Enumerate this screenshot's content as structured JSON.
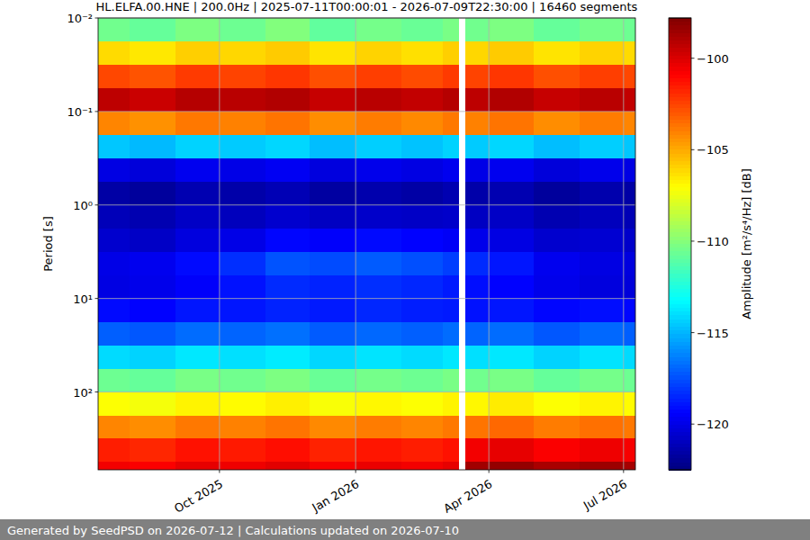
{
  "chart_data": {
    "type": "heatmap",
    "title": "HL.ELFA.00.HNE | 200.0Hz | 2025-07-11T00:00:01 - 2026-07-09T22:30:00 | 16460 segments",
    "footer": "Generated by SeedPSD on 2026-07-12 | Calculations updated on 2026-07-10",
    "y_label": "Period [s]",
    "x_bins": [
      "2025-07-11",
      "2025-08-01",
      "2025-09-01",
      "2025-10-01",
      "2025-11-01",
      "2025-12-01",
      "2026-01-01",
      "2026-02-01",
      "2026-03-01",
      "2026-03-12",
      "2026-03-16",
      "2026-04-01",
      "2026-05-01",
      "2026-06-01",
      "2026-07-01",
      "2026-07-09"
    ],
    "y_bins": [
      0.01,
      0.0178,
      0.0316,
      0.0562,
      0.1,
      0.178,
      0.316,
      0.562,
      1,
      1.78,
      3.16,
      5.62,
      10,
      17.8,
      31.6,
      56.2,
      100,
      178,
      316,
      562,
      680
    ],
    "values": [
      [
        -110.5,
        -110.8,
        -110.2,
        -110.6,
        -110.1,
        -110.9,
        -110.4,
        -110.7,
        -110.3,
        null,
        -110.5,
        -110.2,
        -110.8,
        -110.4,
        -110.6
      ],
      [
        -106.2,
        -106.5,
        -105.9,
        -106.1,
        -105.8,
        -106.4,
        -106.0,
        -106.3,
        -105.9,
        null,
        -106.1,
        -105.8,
        -106.4,
        -106.0,
        -106.2
      ],
      [
        -102.6,
        -102.9,
        -102.3,
        -102.5,
        -102.2,
        -102.8,
        -102.4,
        -102.7,
        -102.3,
        null,
        -102.5,
        -102.2,
        -102.8,
        -102.4,
        -102.6
      ],
      [
        -99.3,
        -99.6,
        -99.1,
        -99.2,
        -99.0,
        -99.5,
        -99.2,
        -99.4,
        -99.1,
        null,
        -99.3,
        -99.0,
        -99.5,
        -99.2,
        -99.4
      ],
      [
        -104.1,
        -104.4,
        -103.8,
        -104.0,
        -103.7,
        -104.3,
        -103.9,
        -104.2,
        -103.8,
        null,
        -104.0,
        -103.7,
        -104.3,
        -103.9,
        -104.1
      ],
      [
        -114.6,
        -114.9,
        -114.3,
        -114.5,
        -114.2,
        -114.8,
        -114.4,
        -114.7,
        -114.3,
        null,
        -114.5,
        -114.2,
        -114.8,
        -114.4,
        -114.6
      ],
      [
        -120.1,
        -120.3,
        -119.8,
        -120.0,
        -119.7,
        -120.2,
        -119.9,
        -120.1,
        -119.8,
        null,
        -120.0,
        -119.8,
        -120.3,
        -119.9,
        -120.1
      ],
      [
        -121.6,
        -121.8,
        -121.3,
        -121.5,
        -121.2,
        -121.7,
        -121.4,
        -121.6,
        -121.3,
        null,
        -121.5,
        -121.3,
        -121.8,
        -121.4,
        -121.6
      ],
      [
        -121.1,
        -121.3,
        -120.8,
        -121.0,
        -120.6,
        -120.9,
        -120.7,
        -120.8,
        -120.7,
        null,
        -120.9,
        -120.8,
        -121.3,
        -121.0,
        -121.2
      ],
      [
        -120.6,
        -120.8,
        -120.2,
        -120.0,
        -119.3,
        -119.5,
        -119.2,
        -119.4,
        -119.6,
        null,
        -119.9,
        -120.1,
        -120.6,
        -120.5,
        -120.7
      ],
      [
        -120.0,
        -119.8,
        -119.2,
        -118.3,
        -117.4,
        -117.6,
        -117.2,
        -117.5,
        -117.9,
        null,
        -118.4,
        -118.9,
        -119.8,
        -120.1,
        -120.2
      ],
      [
        -120.1,
        -119.9,
        -119.5,
        -119.0,
        -118.4,
        -118.6,
        -118.3,
        -118.5,
        -118.8,
        null,
        -119.1,
        -119.4,
        -119.9,
        -120.2,
        -120.3
      ],
      [
        -119.2,
        -119.4,
        -118.9,
        -118.9,
        -118.6,
        -118.8,
        -118.5,
        -118.7,
        -118.8,
        null,
        -119.0,
        -118.9,
        -119.3,
        -119.1,
        -119.3
      ],
      [
        -117.1,
        -117.3,
        -116.8,
        -117.0,
        -116.7,
        -117.2,
        -116.9,
        -117.1,
        -116.8,
        null,
        -117.0,
        -116.8,
        -117.3,
        -116.9,
        -117.1
      ],
      [
        -114.1,
        -114.3,
        -113.8,
        -114.0,
        -113.7,
        -114.2,
        -113.9,
        -114.1,
        -113.8,
        null,
        -114.0,
        -113.8,
        -114.3,
        -113.9,
        -114.1
      ],
      [
        -110.6,
        -110.8,
        -110.3,
        -110.5,
        -110.2,
        -110.7,
        -110.4,
        -110.6,
        -110.3,
        null,
        -110.5,
        -110.3,
        -110.8,
        -110.4,
        -110.6
      ],
      [
        -107.1,
        -107.3,
        -106.8,
        -107.0,
        -106.7,
        -107.2,
        -106.9,
        -107.1,
        -106.8,
        null,
        -106.9,
        -106.6,
        -107.1,
        -106.8,
        -107.0
      ],
      [
        -104.1,
        -104.3,
        -103.8,
        -104.0,
        -103.7,
        -104.2,
        -103.9,
        -104.1,
        -103.8,
        null,
        -103.7,
        -103.4,
        -103.9,
        -103.6,
        -103.8
      ],
      [
        -101.6,
        -101.8,
        -101.3,
        -101.5,
        -101.2,
        -101.7,
        -101.4,
        -101.6,
        -101.3,
        null,
        -100.6,
        -100.3,
        -100.8,
        -100.5,
        -100.7
      ],
      [
        -100.6,
        -100.8,
        -100.3,
        -100.5,
        -100.2,
        -100.7,
        -100.4,
        -100.6,
        -100.3,
        null,
        -98.6,
        -98.3,
        -98.8,
        -98.5,
        -98.7
      ]
    ],
    "xlim": [
      "2025-07-11",
      "2026-07-09"
    ],
    "xticks": [
      {
        "value": "2025-10-01",
        "label": "Oct 2025"
      },
      {
        "value": "2026-01-01",
        "label": "Jan 2026"
      },
      {
        "value": "2026-04-01",
        "label": "Apr 2026"
      },
      {
        "value": "2026-07-01",
        "label": "Jul 2026"
      }
    ],
    "ylim": [
      680,
      0.01
    ],
    "yticks": [
      {
        "value": 0.01,
        "label": "10⁻²"
      },
      {
        "value": 0.1,
        "label": "10⁻¹"
      },
      {
        "value": 1,
        "label": "10⁰"
      },
      {
        "value": 10,
        "label": "10¹"
      },
      {
        "value": 100,
        "label": "10²"
      }
    ],
    "log": "y",
    "grid": true,
    "colorbar": {
      "label": "Amplitude [m²/s⁴/Hz] [dB]",
      "lim": [
        -122.5,
        -97.8
      ],
      "ticks": [
        {
          "value": -100,
          "label": "−100"
        },
        {
          "value": -105,
          "label": "−105"
        },
        {
          "value": -110,
          "label": "−110"
        },
        {
          "value": -115,
          "label": "−115"
        },
        {
          "value": -120,
          "label": "−120"
        }
      ]
    }
  }
}
